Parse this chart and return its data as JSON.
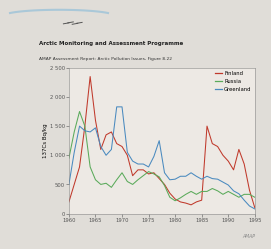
{
  "title1": "Arctic Monitoring and Assessment Programme",
  "title2": "AMAP Assessment Report: Arctic Pollution Issues, Figure 8.22",
  "ylabel": "137Cs Bq/kg",
  "watermark": "AMAP",
  "xlim": [
    1960,
    1995
  ],
  "ylim": [
    0,
    2500
  ],
  "ytick_vals": [
    0,
    500,
    1000,
    1500,
    2000,
    2500
  ],
  "ytick_labels": [
    "0",
    "500",
    "1 000",
    "1 500",
    "2 000",
    "2 500"
  ],
  "xticks": [
    1960,
    1965,
    1970,
    1975,
    1980,
    1985,
    1990,
    1995
  ],
  "finland": {
    "color": "#c0392b",
    "label": "Finland",
    "x": [
      1960,
      1961,
      1962,
      1963,
      1964,
      1965,
      1966,
      1967,
      1968,
      1969,
      1970,
      1971,
      1972,
      1973,
      1974,
      1975,
      1976,
      1977,
      1978,
      1979,
      1980,
      1981,
      1982,
      1983,
      1984,
      1985,
      1986,
      1987,
      1988,
      1989,
      1990,
      1991,
      1992,
      1993,
      1994,
      1995
    ],
    "y": [
      200,
      500,
      800,
      1500,
      2350,
      1600,
      1100,
      1350,
      1400,
      1200,
      1150,
      1000,
      650,
      750,
      750,
      680,
      700,
      600,
      500,
      350,
      250,
      200,
      180,
      150,
      200,
      230,
      1500,
      1200,
      1150,
      1000,
      900,
      750,
      1100,
      850,
      400,
      100
    ]
  },
  "russia": {
    "color": "#5aaa5a",
    "label": "Russia",
    "x": [
      1960,
      1961,
      1962,
      1963,
      1964,
      1965,
      1966,
      1967,
      1968,
      1969,
      1970,
      1971,
      1972,
      1973,
      1974,
      1975,
      1976,
      1977,
      1978,
      1979,
      1980,
      1981,
      1982,
      1983,
      1984,
      1985,
      1986,
      1987,
      1988,
      1989,
      1990,
      1991,
      1992,
      1993,
      1994,
      1995
    ],
    "y": [
      950,
      1400,
      1750,
      1500,
      800,
      580,
      500,
      520,
      450,
      580,
      700,
      550,
      500,
      580,
      650,
      720,
      680,
      630,
      480,
      280,
      220,
      270,
      330,
      380,
      330,
      380,
      380,
      430,
      390,
      330,
      380,
      330,
      280,
      330,
      330,
      280
    ]
  },
  "greenland": {
    "color": "#4a8abf",
    "label": "Greenland",
    "x": [
      1960,
      1961,
      1962,
      1963,
      1964,
      1965,
      1966,
      1967,
      1968,
      1969,
      1970,
      1971,
      1972,
      1973,
      1974,
      1975,
      1976,
      1977,
      1978,
      1979,
      1980,
      1981,
      1982,
      1983,
      1984,
      1985,
      1986,
      1987,
      1988,
      1989,
      1990,
      1991,
      1992,
      1993,
      1994,
      1995
    ],
    "y": [
      500,
      1050,
      1500,
      1420,
      1400,
      1470,
      1150,
      1000,
      1100,
      1830,
      1830,
      1050,
      900,
      850,
      850,
      800,
      980,
      1250,
      700,
      580,
      590,
      640,
      640,
      700,
      640,
      590,
      640,
      600,
      590,
      540,
      490,
      390,
      340,
      230,
      130,
      80
    ]
  },
  "fig_bg": "#e0ddd8",
  "plot_bg": "#ede9e4",
  "header_bg": "#dddad5"
}
